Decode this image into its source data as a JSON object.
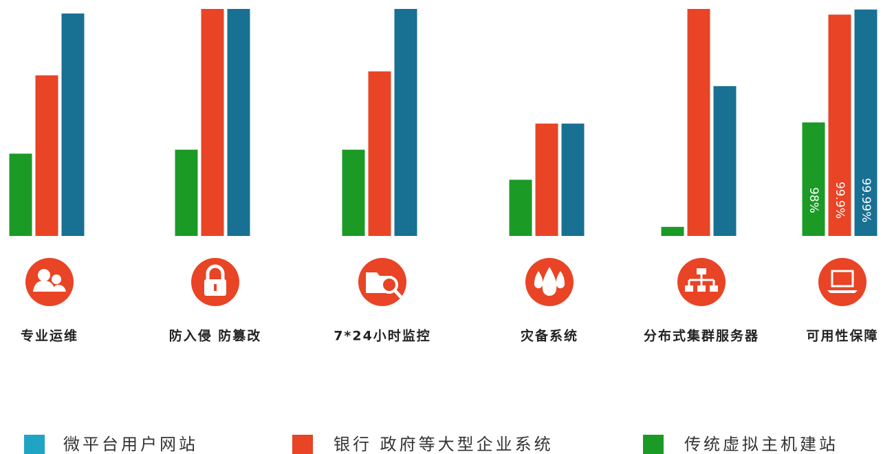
{
  "chart_data": {
    "type": "bar",
    "categories": [
      "专业运维",
      "防入侵 防篡改",
      "7*24小时监控",
      "灾备系统",
      "分布式集群服务器",
      "可用性保障"
    ],
    "series": [
      {
        "name": "微平台用户网站",
        "color": "#187093",
        "values": [
          99.92,
          100,
          100,
          97.98,
          98.64,
          99.99
        ],
        "value_labels": [
          null,
          null,
          null,
          null,
          null,
          "99.99%"
        ]
      },
      {
        "name": "银行 政府等大型企业系统",
        "color": "#e84425",
        "values": [
          98.83,
          100,
          98.9,
          97.98,
          100,
          99.9
        ],
        "value_labels": [
          null,
          null,
          null,
          null,
          null,
          "99.9%"
        ]
      },
      {
        "name": "传统虚拟主机建站",
        "color": "#1b9a26",
        "values": [
          97.45,
          97.52,
          97.52,
          96.99,
          96.16,
          98
        ],
        "value_labels": [
          null,
          null,
          null,
          null,
          null,
          "98%"
        ]
      }
    ],
    "ylim": [
      96,
      100
    ]
  }
}
